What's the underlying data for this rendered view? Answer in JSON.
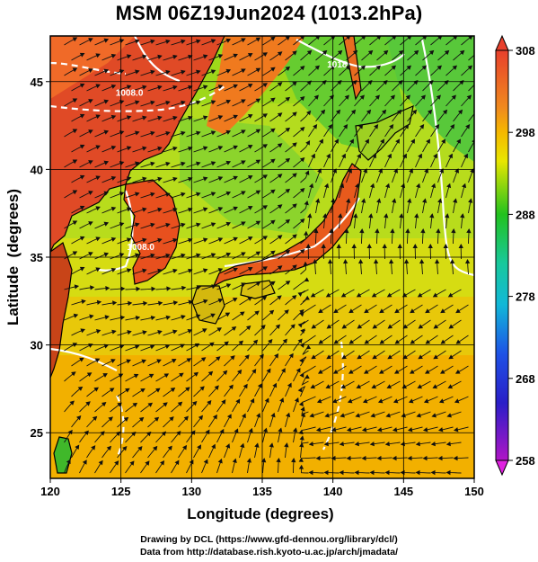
{
  "title": "MSM 06Z19Jun2024 (1013.2hPa)",
  "map": {
    "xlabel": "Longitude (degrees)",
    "ylabel": "Latitude  (degrees)",
    "x_ticks": [
      120,
      125,
      130,
      135,
      140,
      145,
      150
    ],
    "y_ticks": [
      25,
      30,
      35,
      40,
      45
    ],
    "lon_range": [
      120,
      150
    ],
    "lat_range": [
      22.4,
      47.6
    ],
    "contour_labels": [
      {
        "text": "1008.0",
        "lon": 125.6,
        "lat": 44.2
      },
      {
        "text": "1008.0",
        "lon": 126.4,
        "lat": 35.4
      },
      {
        "text": "1018",
        "lon": 140.3,
        "lat": 45.8
      }
    ]
  },
  "colorbar": {
    "ticks": [
      308,
      298,
      288,
      278,
      268,
      258
    ],
    "range": [
      258,
      308
    ]
  },
  "footer": {
    "line1": "Drawing by DCL (https://www.gfd-dennou.org/library/dcl/)",
    "line2": "Data from http://database.rish.kyoto-u.ac.jp/arch/jmadata/"
  }
}
